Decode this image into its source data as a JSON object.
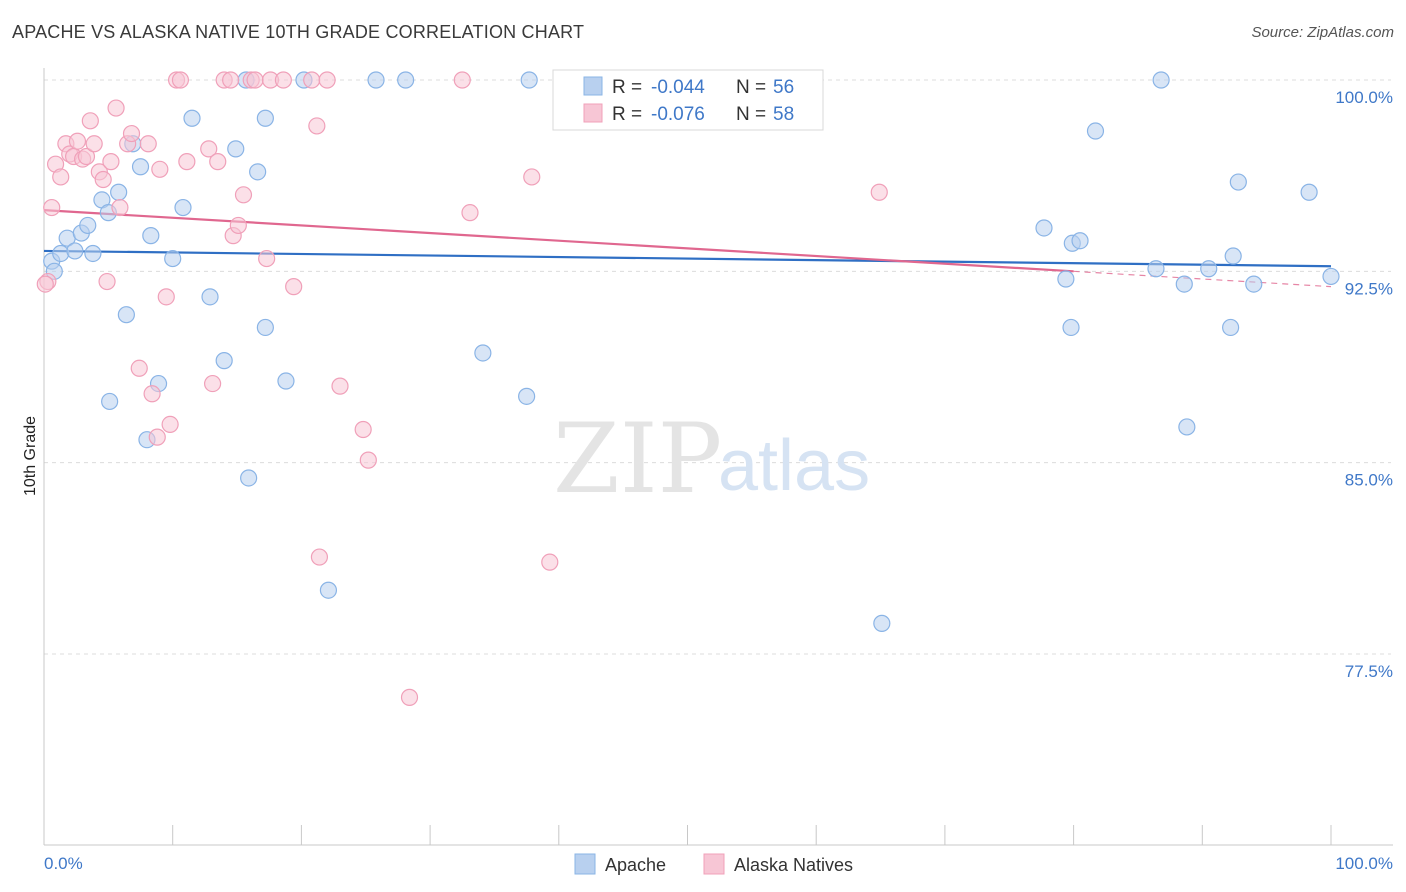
{
  "title": "APACHE VS ALASKA NATIVE 10TH GRADE CORRELATION CHART",
  "source": "Source: ZipAtlas.com",
  "watermark": {
    "zip": "ZIP",
    "atlas": "atlas"
  },
  "chart_data": {
    "type": "scatter",
    "ylabel": "10th Grade",
    "xlim": [
      0,
      100
    ],
    "ylim": [
      70,
      101.5
    ],
    "y_ticks": [
      {
        "value": 100,
        "label": "100.0%"
      },
      {
        "value": 92.5,
        "label": "92.5%"
      },
      {
        "value": 85,
        "label": "85.0%"
      },
      {
        "value": 77.5,
        "label": "77.5%"
      }
    ],
    "x_tick_labels": {
      "left": "0.0%",
      "right": "100.0%"
    },
    "grid": true,
    "legend_placement": "top-center",
    "series": [
      {
        "name": "Apache",
        "color": "#8ab4e6",
        "fill": "#b8d0ef",
        "line_color": "#2f6fc4",
        "R": "-0.044",
        "N": "56",
        "trend": {
          "x": [
            0,
            100
          ],
          "y": [
            93.3,
            92.7
          ]
        },
        "points": [
          [
            0.6,
            92.9
          ],
          [
            0.8,
            92.5
          ],
          [
            1.3,
            93.2
          ],
          [
            1.8,
            93.8
          ],
          [
            2.4,
            93.3
          ],
          [
            2.9,
            94.0
          ],
          [
            3.4,
            94.3
          ],
          [
            3.8,
            93.2
          ],
          [
            4.5,
            95.3
          ],
          [
            5.0,
            94.8
          ],
          [
            5.8,
            95.6
          ],
          [
            5.1,
            87.4
          ],
          [
            6.4,
            90.8
          ],
          [
            6.9,
            97.5
          ],
          [
            7.5,
            96.6
          ],
          [
            8.0,
            85.9
          ],
          [
            8.3,
            93.9
          ],
          [
            8.9,
            88.1
          ],
          [
            10.0,
            93.0
          ],
          [
            10.8,
            95.0
          ],
          [
            11.5,
            98.5
          ],
          [
            12.9,
            91.5
          ],
          [
            14.0,
            89.0
          ],
          [
            14.9,
            97.3
          ],
          [
            15.7,
            100.0
          ],
          [
            15.9,
            84.4
          ],
          [
            16.6,
            96.4
          ],
          [
            17.2,
            98.5
          ],
          [
            17.2,
            90.3
          ],
          [
            18.8,
            88.2
          ],
          [
            20.2,
            100.0
          ],
          [
            22.1,
            80.0
          ],
          [
            25.8,
            100.0
          ],
          [
            28.1,
            100.0
          ],
          [
            34.1,
            89.3
          ],
          [
            37.5,
            87.6
          ],
          [
            37.7,
            100.0
          ],
          [
            43.0,
            100.0
          ],
          [
            65.1,
            78.7
          ],
          [
            77.7,
            94.2
          ],
          [
            79.4,
            92.2
          ],
          [
            79.8,
            90.3
          ],
          [
            79.9,
            93.6
          ],
          [
            80.5,
            93.7
          ],
          [
            81.7,
            98.0
          ],
          [
            86.4,
            92.6
          ],
          [
            86.8,
            100.0
          ],
          [
            88.6,
            92.0
          ],
          [
            88.8,
            86.4
          ],
          [
            90.5,
            92.6
          ],
          [
            92.2,
            90.3
          ],
          [
            92.4,
            93.1
          ],
          [
            92.8,
            96.0
          ],
          [
            94.0,
            92.0
          ],
          [
            98.3,
            95.6
          ],
          [
            100.0,
            92.3
          ]
        ]
      },
      {
        "name": "Alaska Natives",
        "color": "#f0a0b9",
        "fill": "#f7c6d5",
        "line_color": "#e0678f",
        "R": "-0.076",
        "N": "58",
        "trend": {
          "x": [
            0,
            80
          ],
          "y": [
            94.9,
            92.5
          ]
        },
        "trend_dashed": {
          "x": [
            80,
            100
          ],
          "y": [
            92.5,
            91.9
          ]
        },
        "points": [
          [
            0.3,
            92.1
          ],
          [
            0.6,
            95.0
          ],
          [
            0.9,
            96.7
          ],
          [
            1.3,
            96.2
          ],
          [
            1.7,
            97.5
          ],
          [
            2.0,
            97.1
          ],
          [
            2.3,
            97.0
          ],
          [
            2.6,
            97.6
          ],
          [
            3.0,
            96.9
          ],
          [
            3.3,
            97.0
          ],
          [
            3.6,
            98.4
          ],
          [
            3.9,
            97.5
          ],
          [
            4.3,
            96.4
          ],
          [
            4.6,
            96.1
          ],
          [
            4.9,
            92.1
          ],
          [
            5.2,
            96.8
          ],
          [
            5.6,
            98.9
          ],
          [
            5.9,
            95.0
          ],
          [
            6.5,
            97.5
          ],
          [
            6.8,
            97.9
          ],
          [
            7.4,
            88.7
          ],
          [
            8.1,
            97.5
          ],
          [
            8.4,
            87.7
          ],
          [
            8.8,
            86.0
          ],
          [
            9.0,
            96.5
          ],
          [
            9.5,
            91.5
          ],
          [
            9.8,
            86.5
          ],
          [
            10.3,
            100.0
          ],
          [
            10.6,
            100.0
          ],
          [
            11.1,
            96.8
          ],
          [
            12.8,
            97.3
          ],
          [
            13.1,
            88.1
          ],
          [
            13.5,
            96.8
          ],
          [
            14.0,
            100.0
          ],
          [
            14.5,
            100.0
          ],
          [
            14.7,
            93.9
          ],
          [
            15.1,
            94.3
          ],
          [
            15.5,
            95.5
          ],
          [
            16.1,
            100.0
          ],
          [
            16.4,
            100.0
          ],
          [
            17.3,
            93.0
          ],
          [
            17.6,
            100.0
          ],
          [
            18.6,
            100.0
          ],
          [
            19.4,
            91.9
          ],
          [
            20.8,
            100.0
          ],
          [
            21.4,
            81.3
          ],
          [
            22.0,
            100.0
          ],
          [
            21.2,
            98.2
          ],
          [
            23.0,
            88.0
          ],
          [
            24.8,
            86.3
          ],
          [
            25.2,
            85.1
          ],
          [
            28.4,
            75.8
          ],
          [
            32.5,
            100.0
          ],
          [
            33.1,
            94.8
          ],
          [
            37.9,
            96.2
          ],
          [
            39.3,
            81.1
          ],
          [
            64.9,
            95.6
          ],
          [
            0.1,
            92.0
          ]
        ]
      }
    ]
  },
  "legend": {
    "r_label": "R = ",
    "n_label": "N = ",
    "bottom": [
      "Apache",
      "Alaska Natives"
    ]
  }
}
